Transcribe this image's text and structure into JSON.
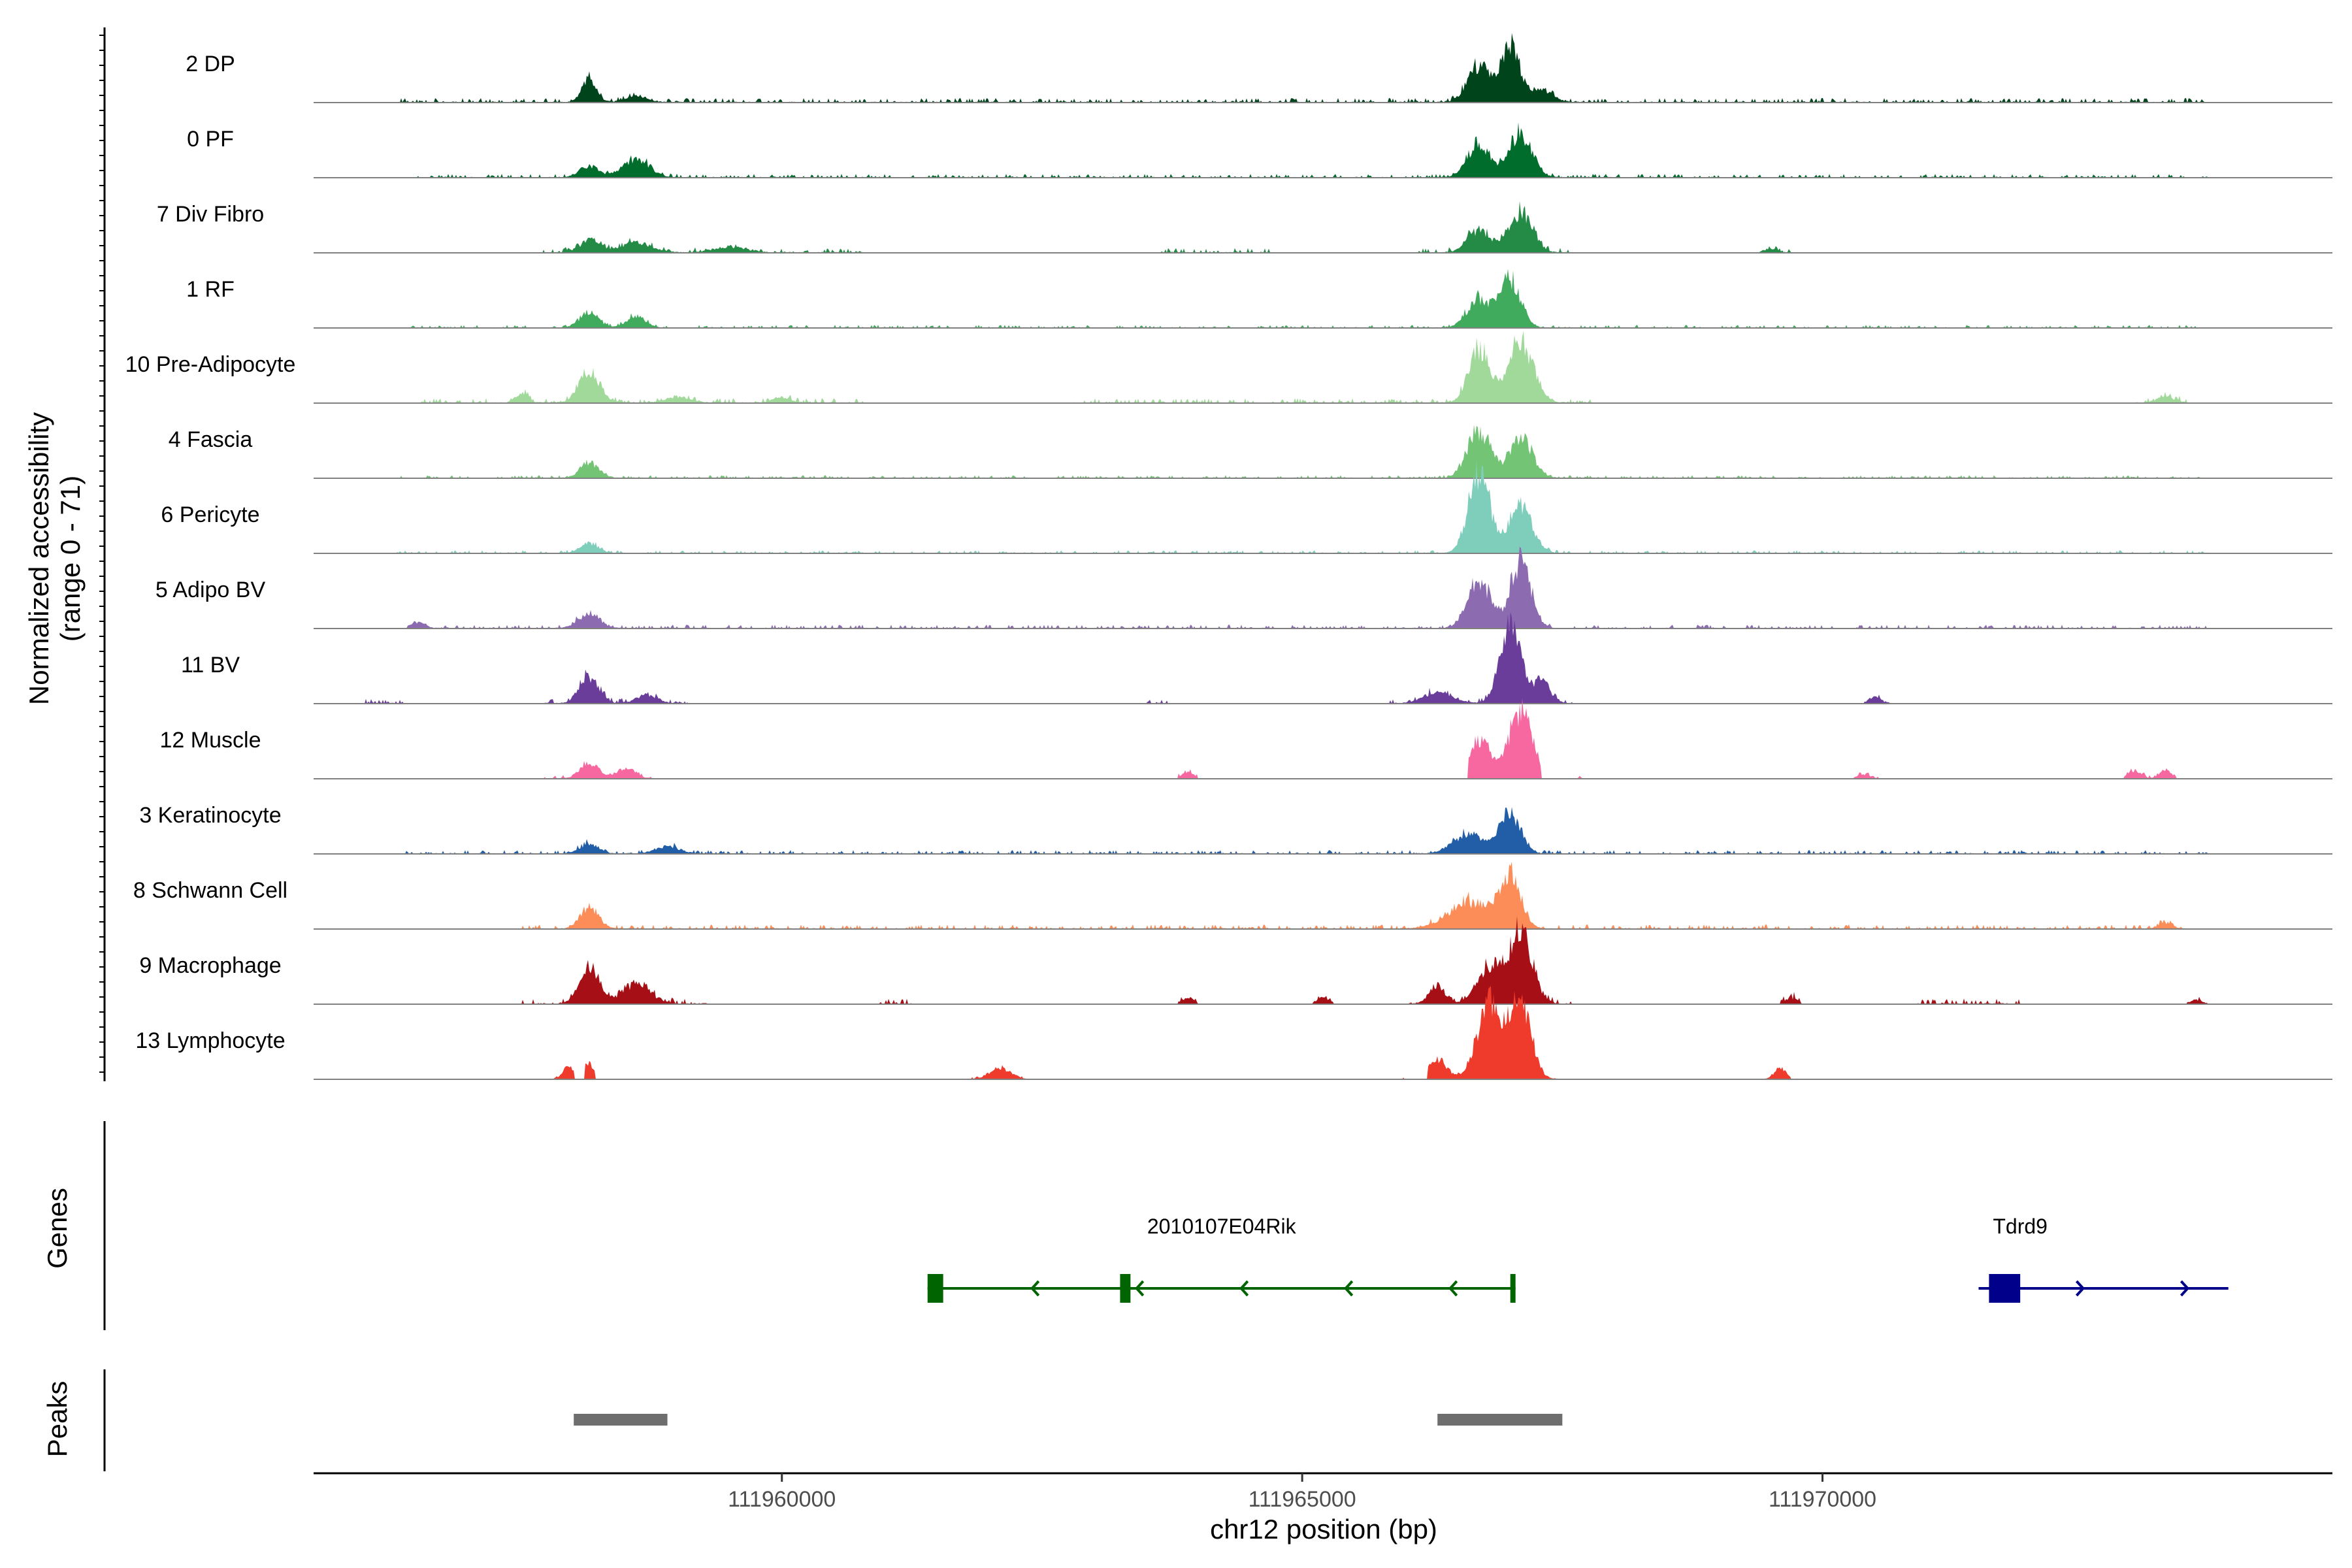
{
  "chart_data": {
    "type": "area",
    "ylabel_line1": "Normalized accessibility",
    "ylabel_line2": "(range 0 - 71)",
    "xlabel": "chr12 position (bp)",
    "xlim": [
      111955500,
      111974900
    ],
    "x_ticks": [
      111960000,
      111965000,
      111970000
    ],
    "x_tick_labels": [
      "111960000",
      "111965000",
      "111970000"
    ],
    "ylim": [
      0,
      71
    ],
    "series": [
      {
        "name": "2 DP",
        "color": "#00441b",
        "peaks": [
          [
            111958150,
            12,
            70
          ],
          [
            111958600,
            3,
            110
          ],
          [
            111966700,
            18,
            110
          ],
          [
            111967000,
            30,
            90
          ],
          [
            111967300,
            6,
            110
          ]
        ],
        "noise": 1.2,
        "regions": [
          [
            111956300,
            111973700
          ]
        ]
      },
      {
        "name": "0 PF",
        "color": "#006d2c",
        "peaks": [
          [
            111958150,
            6,
            90
          ],
          [
            111958600,
            9,
            130
          ],
          [
            111966700,
            18,
            110
          ],
          [
            111967100,
            23,
            110
          ]
        ],
        "noise": 1.0,
        "regions": [
          [
            111956300,
            111973700
          ]
        ]
      },
      {
        "name": "7 Div Fibro",
        "color": "#238b45",
        "peaks": [
          [
            111958150,
            6,
            100
          ],
          [
            111958600,
            5,
            150
          ],
          [
            111959500,
            3,
            150
          ],
          [
            111966700,
            12,
            110
          ],
          [
            111967100,
            22,
            110
          ],
          [
            111969500,
            2,
            60
          ]
        ],
        "noise": 1.3,
        "regions": [
          [
            111957700,
            111960800
          ],
          [
            111963600,
            111964700
          ],
          [
            111966100,
            111967600
          ],
          [
            111969400,
            111969700
          ]
        ]
      },
      {
        "name": "1 RF",
        "color": "#41ab5d",
        "peaks": [
          [
            111958150,
            8,
            90
          ],
          [
            111958600,
            6,
            90
          ],
          [
            111966700,
            15,
            110
          ],
          [
            111967000,
            25,
            100
          ]
        ],
        "noise": 0.8,
        "regions": [
          [
            111956300,
            111973700
          ]
        ]
      },
      {
        "name": "10 Pre-Adipocyte",
        "color": "#a1d99b",
        "peaks": [
          [
            111957500,
            5,
            60
          ],
          [
            111958150,
            16,
            100
          ],
          [
            111959000,
            3,
            120
          ],
          [
            111960000,
            3,
            80
          ],
          [
            111966700,
            28,
            100
          ],
          [
            111967100,
            32,
            120
          ],
          [
            111973300,
            3,
            90
          ]
        ],
        "noise": 1.3,
        "regions": [
          [
            111956500,
            111960800
          ],
          [
            111962800,
            111967800
          ],
          [
            111973000,
            111973500
          ]
        ]
      },
      {
        "name": "4 Fascia",
        "color": "#74c476",
        "peaks": [
          [
            111958150,
            8,
            90
          ],
          [
            111966700,
            25,
            110
          ],
          [
            111967100,
            21,
            110
          ]
        ],
        "noise": 0.8,
        "regions": [
          [
            111956300,
            111973700
          ]
        ]
      },
      {
        "name": "6 Pericyte",
        "color": "#7fcdbb",
        "peaks": [
          [
            111958150,
            5,
            90
          ],
          [
            111966700,
            43,
            100
          ],
          [
            111967100,
            25,
            110
          ]
        ],
        "noise": 0.8,
        "regions": [
          [
            111956300,
            111973700
          ]
        ]
      },
      {
        "name": "5 Adipo BV",
        "color": "#8c6bb1",
        "peaks": [
          [
            111956500,
            3,
            70
          ],
          [
            111958150,
            8,
            100
          ],
          [
            111966700,
            25,
            110
          ],
          [
            111967100,
            35,
            100
          ]
        ],
        "noise": 1.0,
        "regions": [
          [
            111956400,
            111973700
          ]
        ]
      },
      {
        "name": "11 BV",
        "color": "#6a3d9a",
        "peaks": [
          [
            111958150,
            14,
            90
          ],
          [
            111958700,
            4,
            100
          ],
          [
            111966300,
            6,
            130
          ],
          [
            111967000,
            38,
            100
          ],
          [
            111967300,
            12,
            80
          ],
          [
            111970500,
            3,
            60
          ]
        ],
        "noise": 1.3,
        "regions": [
          [
            111956000,
            111956400
          ],
          [
            111957700,
            111959100
          ],
          [
            111963500,
            111963700
          ],
          [
            111965800,
            111967600
          ],
          [
            111970400,
            111970650
          ]
        ]
      },
      {
        "name": "12 Muscle",
        "color": "#f768a1",
        "peaks": [
          [
            111958150,
            8,
            90
          ],
          [
            111958500,
            5,
            90
          ],
          [
            111966700,
            20,
            110
          ],
          [
            111967100,
            35,
            110
          ],
          [
            111963900,
            3,
            60
          ],
          [
            111970400,
            2,
            60
          ],
          [
            111973000,
            4,
            60
          ],
          [
            111973300,
            4,
            60
          ]
        ],
        "noise": 0.9,
        "regions": [
          [
            111957700,
            111958800
          ],
          [
            111963800,
            111964000
          ],
          [
            111966600,
            111967300
          ],
          [
            111967600,
            111967700
          ],
          [
            111970300,
            111970600
          ],
          [
            111972900,
            111973400
          ]
        ]
      },
      {
        "name": "3 Keratinocyte",
        "color": "#225ea8",
        "peaks": [
          [
            111958150,
            5,
            90
          ],
          [
            111958900,
            4,
            110
          ],
          [
            111966600,
            10,
            150
          ],
          [
            111967000,
            21,
            100
          ]
        ],
        "noise": 1.0,
        "regions": [
          [
            111956300,
            111973700
          ]
        ]
      },
      {
        "name": "8 Schwann Cell",
        "color": "#fc8d59",
        "peaks": [
          [
            111958150,
            11,
            90
          ],
          [
            111966600,
            14,
            200
          ],
          [
            111967000,
            27,
            100
          ],
          [
            111973300,
            3,
            60
          ]
        ],
        "noise": 1.2,
        "regions": [
          [
            111957500,
            111973500
          ]
        ]
      },
      {
        "name": "9 Macrophage",
        "color": "#a50f15",
        "peaks": [
          [
            111958150,
            21,
            90
          ],
          [
            111958600,
            10,
            140
          ],
          [
            111966300,
            9,
            80
          ],
          [
            111966800,
            20,
            110
          ],
          [
            111967100,
            38,
            110
          ],
          [
            111963900,
            3,
            60
          ],
          [
            111965200,
            3,
            60
          ],
          [
            111969700,
            3,
            60
          ],
          [
            111973600,
            2,
            60
          ]
        ],
        "noise": 1.5,
        "regions": [
          [
            111957500,
            111959300
          ],
          [
            111960900,
            111961300
          ],
          [
            111963800,
            111964000
          ],
          [
            111965100,
            111965300
          ],
          [
            111966000,
            111967600
          ],
          [
            111969600,
            111969800
          ],
          [
            111970900,
            111971900
          ],
          [
            111973500,
            111973700
          ]
        ]
      },
      {
        "name": "13 Lymphocyte",
        "color": "#ef3b2c",
        "peaks": [
          [
            111957950,
            6,
            60
          ],
          [
            111958150,
            8,
            60
          ],
          [
            111962100,
            6,
            100
          ],
          [
            111966300,
            10,
            90
          ],
          [
            111966800,
            38,
            120
          ],
          [
            111967100,
            41,
            100
          ],
          [
            111969600,
            5,
            60
          ]
        ],
        "noise": 0.5,
        "regions": [
          [
            111957800,
            111958000
          ],
          [
            111958100,
            111958200
          ],
          [
            111961800,
            111962400
          ],
          [
            111965900,
            111966000
          ],
          [
            111966200,
            111967500
          ],
          [
            111969400,
            111969700
          ]
        ]
      }
    ],
    "genes_label": "Genes",
    "genes": [
      {
        "name": "2010107E04Rik",
        "color": "#006400",
        "strand": "-",
        "start": 111961400,
        "end": 111967050,
        "exons": [
          [
            111961400,
            111961550
          ],
          [
            111963250,
            111963350
          ],
          [
            111967000,
            111967050
          ]
        ]
      },
      {
        "name": "Tdrd9",
        "color": "#00008b",
        "strand": "+",
        "start": 111971500,
        "end": 111973900,
        "exons": [
          [
            111971600,
            111971900
          ]
        ]
      }
    ],
    "peaks_label": "Peaks",
    "peak_regions": [
      [
        111958000,
        111958900
      ],
      [
        111966300,
        111967500
      ]
    ]
  }
}
